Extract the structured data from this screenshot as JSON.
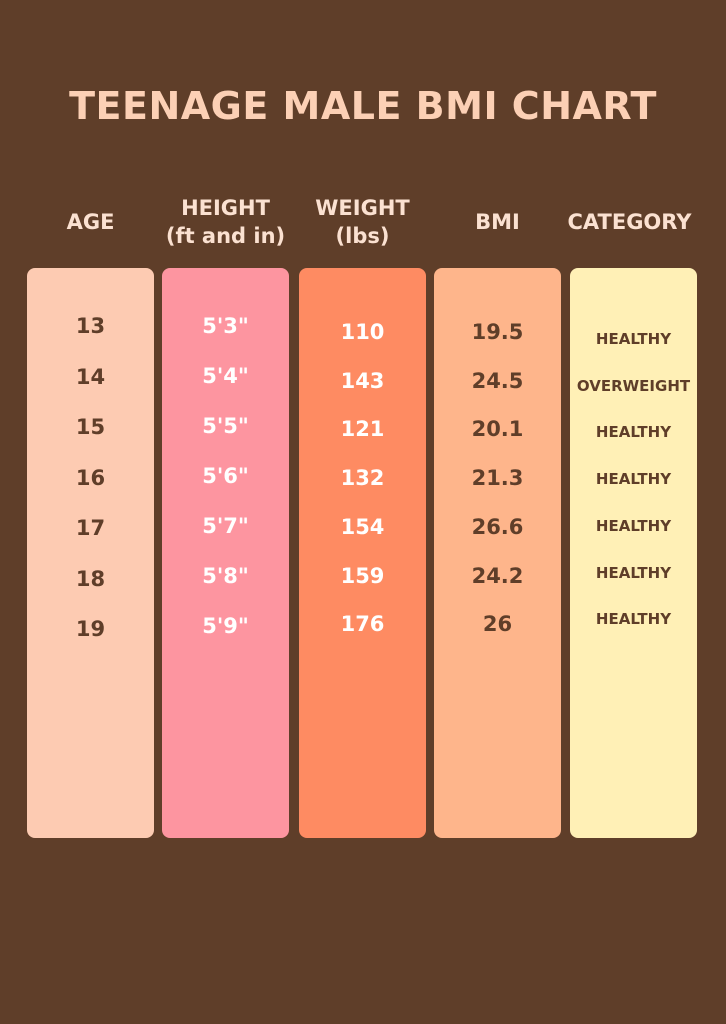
{
  "title": "TEENAGE MALE BMI CHART",
  "headers": {
    "age": [
      "AGE"
    ],
    "height": [
      "HEIGHT",
      "(ft and in)"
    ],
    "weight": [
      "WEIGHT",
      "(lbs)"
    ],
    "bmi": [
      "BMI"
    ],
    "category": [
      "CATEGORY"
    ]
  },
  "colors": {
    "background": "#5f3e29",
    "title": "#fcd0b5",
    "age_col": "#fdcbb2",
    "height_col": "#fd95a0",
    "weight_col": "#fe8b62",
    "bmi_col": "#feb58b",
    "category_col": "#fff0b6"
  },
  "rows": [
    {
      "age": "13",
      "height": "5'3\"",
      "weight": "110",
      "bmi": "19.5",
      "category": "HEALTHY"
    },
    {
      "age": "14",
      "height": "5'4\"",
      "weight": "143",
      "bmi": "24.5",
      "category": "OVERWEIGHT"
    },
    {
      "age": "15",
      "height": "5'5\"",
      "weight": "121",
      "bmi": "20.1",
      "category": "HEALTHY"
    },
    {
      "age": "16",
      "height": "5'6\"",
      "weight": "132",
      "bmi": "21.3",
      "category": "HEALTHY"
    },
    {
      "age": "17",
      "height": "5'7\"",
      "weight": "154",
      "bmi": "26.6",
      "category": "HEALTHY"
    },
    {
      "age": "18",
      "height": "5'8\"",
      "weight": "159",
      "bmi": "24.2",
      "category": "HEALTHY"
    },
    {
      "age": "19",
      "height": "5'9\"",
      "weight": "176",
      "bmi": "26",
      "category": "HEALTHY"
    }
  ]
}
